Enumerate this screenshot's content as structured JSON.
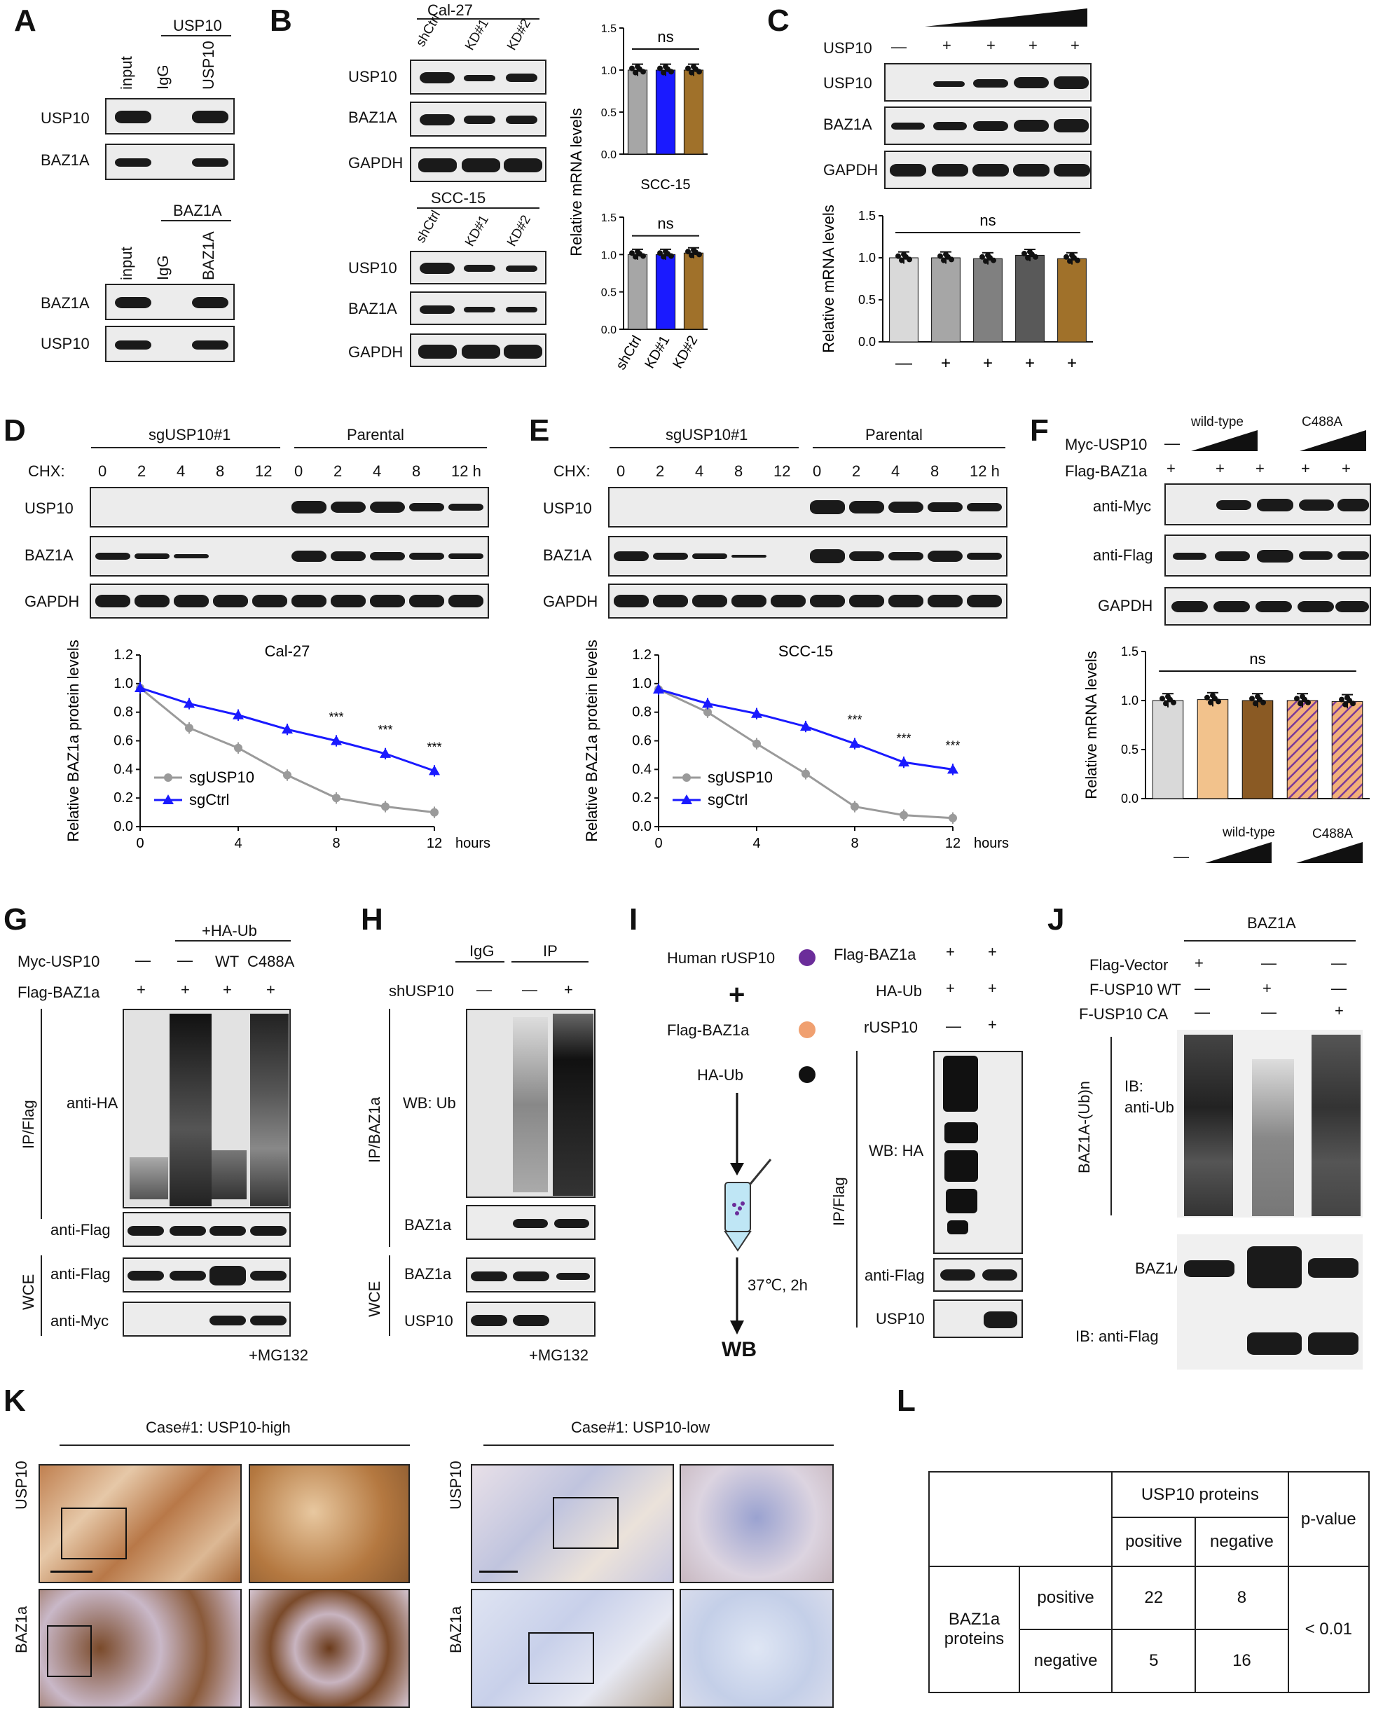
{
  "panels": {
    "A": {
      "letter": "A",
      "top_header": "USP10",
      "bottom_header": "BAZ1A",
      "cols": [
        "input",
        "IgG",
        "USP10"
      ],
      "cols2": [
        "input",
        "IgG",
        "BAZ1A"
      ],
      "rows_top": [
        "USP10",
        "BAZ1A"
      ],
      "rows_bottom": [
        "BAZ1A",
        "USP10"
      ]
    },
    "B": {
      "letter": "B",
      "top_header": "Cal-27",
      "bottom_header": "SCC-15",
      "cols": [
        "shCtrl",
        "KD#1",
        "KD#2"
      ],
      "rows": [
        "USP10",
        "BAZ1A",
        "GAPDH"
      ],
      "chart_title_top": "Cal-27",
      "chart_title_bottom": "SCC-15",
      "ns": "ns",
      "ylabel": "Relative mRNA levels"
    },
    "C": {
      "letter": "C",
      "row_header": "USP10",
      "minus": "—",
      "plus": "+",
      "rows": [
        "USP10",
        "BAZ1A",
        "GAPDH"
      ],
      "ns": "ns",
      "ylabel": "Relative mRNA levels"
    },
    "D": {
      "letter": "D",
      "group1": "sgUSP10#1",
      "group2": "Parental",
      "chx": "CHX:",
      "times": [
        "0",
        "2",
        "4",
        "8",
        "12",
        "0",
        "2",
        "4",
        "8",
        "12 h"
      ],
      "rows": [
        "USP10",
        "BAZ1A",
        "GAPDH"
      ],
      "chart_title": "Cal-27",
      "ylabel": "Relative BAZ1a protein levels",
      "xunit": "hours",
      "legend": [
        "sgUSP10",
        "sgCtrl"
      ],
      "sig": "***"
    },
    "E": {
      "letter": "E",
      "group1": "sgUSP10#1",
      "group2": "Parental",
      "chx": "CHX:",
      "times": [
        "0",
        "2",
        "4",
        "8",
        "12",
        "0",
        "2",
        "4",
        "8",
        "12 h"
      ],
      "rows": [
        "USP10",
        "BAZ1A",
        "GAPDH"
      ],
      "chart_title": "SCC-15",
      "ylabel": "Relative BAZ1a protein levels",
      "xunit": "hours",
      "legend": [
        "sgUSP10",
        "sgCtrl"
      ],
      "sig": "***"
    },
    "F": {
      "letter": "F",
      "wt": "wild-type",
      "ca": "C488A",
      "row1": "Myc-USP10",
      "row2": "Flag-BAZ1a",
      "blots": [
        "anti-Myc",
        "anti-Flag",
        "GAPDH"
      ],
      "ns": "ns",
      "ylabel": "Relative mRNA levels"
    },
    "G": {
      "letter": "G",
      "haub": "+HA-Ub",
      "row1": "Myc-USP10",
      "row2": "Flag-BAZ1a",
      "wt": "WT",
      "ca": "C488A",
      "ipflag": "IP/Flag",
      "wce": "WCE",
      "antiha": "anti-HA",
      "antiflag": "anti-Flag",
      "antimyc": "anti-Myc",
      "mg132": "+MG132"
    },
    "H": {
      "letter": "H",
      "igg": "IgG",
      "ip": "IP",
      "shusp10": "shUSP10",
      "ipbaz": "IP/BAZ1a",
      "wbub": "WB: Ub",
      "baz1a": "BAZ1a",
      "wce": "WCE",
      "usp10": "USP10",
      "mg132": "+MG132"
    },
    "I": {
      "letter": "I",
      "rusp10": "Human rUSP10",
      "flagbaz": "Flag-BAZ1a",
      "haub": "HA-Ub",
      "plus": "+",
      "cond": "37℃, 2h",
      "wb": "WB",
      "rows": [
        "Flag-BAZ1a",
        "HA-Ub",
        "rUSP10"
      ],
      "ipflag": "IP/Flag",
      "wbha": "WB: HA",
      "antiflag": "anti-Flag",
      "usp10": "USP10"
    },
    "J": {
      "letter": "J",
      "header": "BAZ1A",
      "rows": [
        "Flag-Vector",
        "F-USP10 WT",
        "F-USP10 CA"
      ],
      "ub": "BAZ1A-(Ub)n",
      "ib": "IB:",
      "antiub": "anti-Ub",
      "baz1a": "BAZ1A",
      "ibflag": "IB: anti-Flag"
    },
    "K": {
      "letter": "K",
      "high": "Case#1: USP10-high",
      "low": "Case#1: USP10-low",
      "row1": "USP10",
      "row2": "BAZ1a"
    },
    "L": {
      "letter": "L",
      "usp": "USP10 proteins",
      "pval": "p-value",
      "pos": "positive",
      "neg": "negative",
      "baz": "BAZ1a proteins",
      "v11": "22",
      "v12": "8",
      "v21": "5",
      "v22": "16",
      "p": "< 0.01"
    }
  },
  "chart_data": [
    {
      "type": "bar",
      "title": "Cal-27",
      "categories": [
        "shCtrl",
        "KD#1",
        "KD#2"
      ],
      "values": [
        1.0,
        1.0,
        1.0
      ],
      "colors": [
        "#a6a6a6",
        "#1a1aff",
        "#a0712a"
      ],
      "ylabel": "Relative mRNA levels",
      "ylim": [
        0,
        1.5
      ],
      "annotation": "ns"
    },
    {
      "type": "bar",
      "title": "SCC-15",
      "categories": [
        "shCtrl",
        "KD#1",
        "KD#2"
      ],
      "values": [
        1.0,
        1.0,
        1.02
      ],
      "colors": [
        "#a6a6a6",
        "#1a1aff",
        "#a0712a"
      ],
      "ylabel": "Relative mRNA levels",
      "ylim": [
        0,
        1.5
      ],
      "annotation": "ns"
    },
    {
      "type": "bar",
      "categories": [
        "—",
        "+",
        "+",
        "+",
        "+"
      ],
      "values": [
        1.0,
        1.0,
        0.99,
        1.03,
        0.99
      ],
      "colors": [
        "#d9d9d9",
        "#a6a6a6",
        "#808080",
        "#595959",
        "#a0712a"
      ],
      "ylabel": "Relative mRNA levels",
      "ylim": [
        0,
        1.5
      ],
      "annotation": "ns"
    },
    {
      "type": "line",
      "title": "Cal-27",
      "x": [
        0,
        2,
        4,
        6,
        8,
        10,
        12
      ],
      "ylim": [
        0,
        1.2
      ],
      "xlabel": "hours",
      "series": [
        {
          "name": "sgUSP10",
          "values": [
            0.97,
            0.69,
            0.55,
            0.36,
            0.2,
            0.14,
            0.1
          ]
        },
        {
          "name": "sgCtrl",
          "values": [
            0.97,
            0.86,
            0.78,
            0.68,
            0.6,
            0.51,
            0.39
          ]
        }
      ]
    },
    {
      "type": "line",
      "title": "SCC-15",
      "x": [
        0,
        2,
        4,
        6,
        8,
        10,
        12
      ],
      "ylim": [
        0,
        1.2
      ],
      "xlabel": "hours",
      "series": [
        {
          "name": "sgUSP10",
          "values": [
            0.96,
            0.8,
            0.58,
            0.37,
            0.14,
            0.08,
            0.06
          ]
        },
        {
          "name": "sgCtrl",
          "values": [
            0.96,
            0.86,
            0.79,
            0.7,
            0.58,
            0.45,
            0.4
          ]
        }
      ]
    },
    {
      "type": "bar",
      "categories": [
        "—",
        "wild-type",
        "wild-type",
        "C488A",
        "C488A"
      ],
      "values": [
        1.0,
        1.01,
        1.0,
        1.0,
        0.99
      ],
      "colors": [
        "#d9d9d9",
        "#f2c28c",
        "#8a5a24",
        "#f2c28c",
        "#8a5a24"
      ],
      "ylabel": "Relative mRNA levels",
      "ylim": [
        0,
        1.5
      ],
      "annotation": "ns"
    }
  ]
}
